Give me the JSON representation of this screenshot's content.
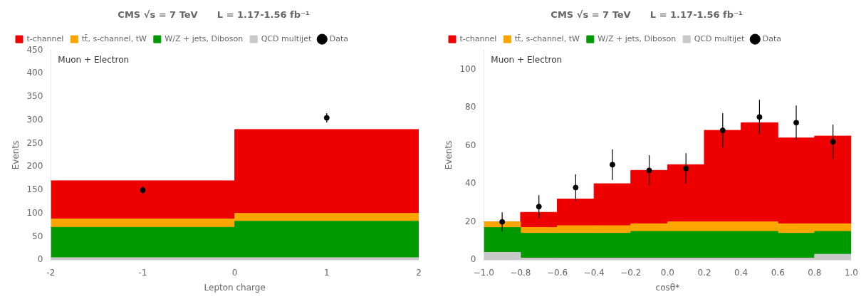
{
  "chart_data": [
    {
      "type": "histogram",
      "stacked": true,
      "title": "CMS √s = 7 TeV      L = 1.17-1.56 fb⁻¹",
      "xlabel": "Lepton charge",
      "ylabel": "Events",
      "annotations": [
        "Muon + Electron"
      ],
      "legend": "upper left",
      "grid": false,
      "xlim": [
        -2,
        2
      ],
      "ylim": [
        0,
        450
      ],
      "xticks": [
        -2,
        -1,
        0,
        1,
        2
      ],
      "yticks": [
        0,
        50,
        100,
        150,
        200,
        250,
        300,
        350,
        400,
        450
      ],
      "bins": [
        -2,
        0,
        2
      ],
      "series": [
        {
          "name": "QCD multijet",
          "color": "#C8C8C8",
          "values": [
            5,
            5
          ]
        },
        {
          "name": "W/Z + jets, Diboson",
          "color": "#009900",
          "values": [
            65,
            78
          ]
        },
        {
          "name": "tt̄, s-channel, tW",
          "color": "#FFA500",
          "values": [
            18,
            17
          ]
        },
        {
          "name": "t-channel",
          "color": "#EE0000",
          "values": [
            82,
            180
          ]
        },
        {
          "name": "Data",
          "type": "scatter",
          "marker": "circle",
          "color": "black",
          "x": [
            -1,
            1
          ],
          "values": [
            150,
            305
          ],
          "yerr_lo": [
            8,
            10
          ],
          "yerr_hi": [
            8,
            10
          ]
        }
      ]
    },
    {
      "type": "histogram",
      "stacked": true,
      "title": "CMS √s = 7 TeV      L = 1.17-1.56 fb⁻¹",
      "xlabel": "cosθ*",
      "ylabel": "Events",
      "annotations": [
        "Muon + Electron"
      ],
      "legend": "upper left",
      "grid": false,
      "xlim": [
        -1,
        1
      ],
      "ylim": [
        0,
        110
      ],
      "xticks": [
        {
          "value": -1.0,
          "label": "−1.0"
        },
        {
          "value": -0.8,
          "label": "−0.8"
        },
        {
          "value": -0.6,
          "label": "−0.6"
        },
        {
          "value": -0.4,
          "label": "−0.4"
        },
        {
          "value": -0.2,
          "label": "−0.2"
        },
        {
          "value": 0.0,
          "label": "0.0"
        },
        {
          "value": 0.2,
          "label": "0.2"
        },
        {
          "value": 0.4,
          "label": "0.4"
        },
        {
          "value": 0.6,
          "label": "0.6"
        },
        {
          "value": 0.8,
          "label": "0.8"
        },
        {
          "value": 1.0,
          "label": "1.0"
        }
      ],
      "yticks": [
        0,
        20,
        40,
        60,
        80,
        100
      ],
      "bins": [
        -1.0,
        -0.8,
        -0.6,
        -0.4,
        -0.2,
        0.0,
        0.2,
        0.4,
        0.6,
        0.8,
        1.0
      ],
      "series": [
        {
          "name": "QCD multijet",
          "color": "#C8C8C8",
          "values": [
            4,
            1,
            1,
            1,
            1,
            1,
            1,
            1,
            1,
            3
          ]
        },
        {
          "name": "W/Z + jets, Diboson",
          "color": "#009900",
          "values": [
            13,
            13,
            13,
            13,
            14,
            14,
            14,
            14,
            13,
            12
          ]
        },
        {
          "name": "tt̄, s-channel, tW",
          "color": "#FFA500",
          "values": [
            3,
            3,
            4,
            4,
            4,
            5,
            5,
            5,
            5,
            4
          ]
        },
        {
          "name": "t-channel",
          "color": "#EE0000",
          "values": [
            0,
            8,
            14,
            22,
            28,
            30,
            48,
            52,
            45,
            46
          ]
        },
        {
          "name": "Data",
          "type": "scatter",
          "marker": "circle",
          "color": "black",
          "x": [
            -0.9,
            -0.7,
            -0.5,
            -0.3,
            -0.1,
            0.1,
            0.3,
            0.5,
            0.7,
            0.9
          ],
          "values": [
            20,
            28,
            38,
            50,
            47,
            48,
            68,
            75,
            72,
            62
          ],
          "yerr_lo": [
            5,
            6,
            7,
            8,
            8,
            8,
            9,
            9,
            9,
            9
          ],
          "yerr_hi": [
            5,
            6,
            7,
            8,
            8,
            8,
            9,
            9,
            9,
            9
          ]
        }
      ]
    }
  ]
}
